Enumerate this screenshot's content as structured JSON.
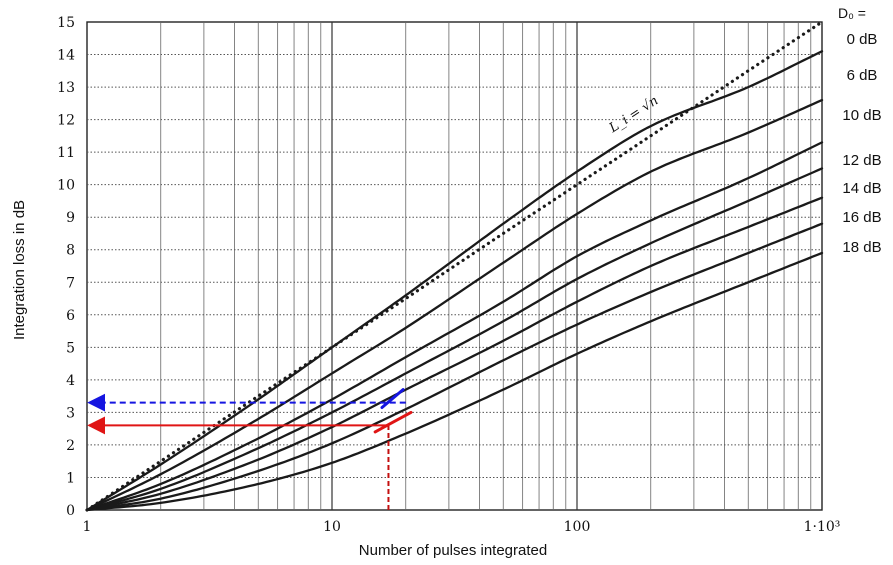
{
  "chart_data": {
    "type": "line",
    "title": "",
    "xlabel": "Number of pulses integrated",
    "ylabel": "Integration loss in dB",
    "xscale": "log",
    "xlim": [
      1,
      1000
    ],
    "ylim": [
      0,
      15
    ],
    "grid": true,
    "x_ticks": [
      {
        "value": 1,
        "label": "1"
      },
      {
        "value": 10,
        "label": "10"
      },
      {
        "value": 100,
        "label": "100"
      },
      {
        "value": 1000,
        "label": "1·10³"
      }
    ],
    "y_ticks": [
      "0",
      "1",
      "2",
      "3",
      "4",
      "5",
      "6",
      "7",
      "8",
      "9",
      "10",
      "11",
      "12",
      "13",
      "14",
      "15"
    ],
    "legend_title": "D₀ =",
    "legend_placement": "right",
    "x": [
      1,
      2,
      5,
      10,
      20,
      50,
      100,
      200,
      500,
      1000
    ],
    "series": [
      {
        "name": "0 dB",
        "style": "solid",
        "values": [
          0,
          1.4,
          3.4,
          5.0,
          6.6,
          8.8,
          10.4,
          11.8,
          13.0,
          14.1
        ]
      },
      {
        "name": "6 dB",
        "style": "solid",
        "values": [
          0,
          1.1,
          2.8,
          4.2,
          5.6,
          7.6,
          9.1,
          10.4,
          11.6,
          12.6
        ]
      },
      {
        "name": "10 dB",
        "style": "solid",
        "values": [
          0,
          0.8,
          2.2,
          3.4,
          4.7,
          6.4,
          7.8,
          8.9,
          10.2,
          11.3
        ]
      },
      {
        "name": "12 dB",
        "style": "solid",
        "values": [
          0,
          0.65,
          1.9,
          3.0,
          4.2,
          5.8,
          7.1,
          8.2,
          9.5,
          10.5
        ]
      },
      {
        "name": "14 dB",
        "style": "solid",
        "values": [
          0,
          0.5,
          1.55,
          2.55,
          3.7,
          5.2,
          6.4,
          7.5,
          8.7,
          9.6
        ]
      },
      {
        "name": "16 dB",
        "style": "solid",
        "values": [
          0,
          0.35,
          1.2,
          2.05,
          3.1,
          4.6,
          5.7,
          6.7,
          7.9,
          8.8
        ]
      },
      {
        "name": "18 dB",
        "style": "solid",
        "values": [
          0,
          0.22,
          0.8,
          1.45,
          2.35,
          3.7,
          4.8,
          5.8,
          7.0,
          7.9
        ]
      },
      {
        "name": "L_i = √n",
        "style": "dotted",
        "values": [
          0,
          1.5,
          3.5,
          5.0,
          6.5,
          8.5,
          10.0,
          11.5,
          13.5,
          15.0
        ]
      }
    ],
    "annotations": [
      {
        "text": "L_i = √n",
        "type": "curve-label"
      },
      {
        "type": "arrow",
        "color": "#1515e0",
        "style": "dashed",
        "from": [
          20,
          3.3
        ],
        "to": [
          1,
          3.3
        ]
      },
      {
        "type": "arrow",
        "color": "#e01515",
        "style": "solid",
        "from": [
          17,
          2.6
        ],
        "to": [
          1,
          2.6
        ]
      },
      {
        "type": "vline",
        "color": "#c41010",
        "style": "dashed",
        "x": 17,
        "y": [
          0,
          2.6
        ]
      },
      {
        "type": "segment",
        "color": "#1515e0",
        "from": [
          16,
          3.15
        ],
        "to": [
          19.5,
          3.7
        ]
      },
      {
        "type": "segment",
        "color": "#e01515",
        "from": [
          15,
          2.4
        ],
        "to": [
          21,
          3.0
        ]
      }
    ],
    "colors": {
      "curves": "#1a1a1a",
      "grid": "#555555",
      "blue": "#1515e0",
      "red": "#e01515"
    }
  }
}
